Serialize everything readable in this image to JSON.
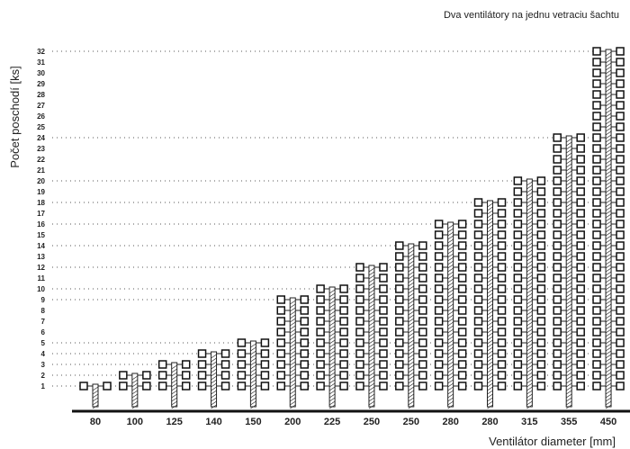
{
  "chart_data": {
    "type": "bar",
    "title": "Dva ventilátory na jednu vetraciu šachtu",
    "xlabel": "Ventilátor diameter [mm]",
    "ylabel": "Počet poschodí [ks]",
    "categories": [
      "80",
      "100",
      "125",
      "140",
      "150",
      "200",
      "225",
      "250",
      "250",
      "280",
      "280",
      "315",
      "355",
      "450"
    ],
    "values": [
      1,
      2,
      3,
      4,
      5,
      9,
      10,
      12,
      14,
      16,
      18,
      20,
      24,
      32
    ],
    "y_ticks": [
      1,
      2,
      3,
      4,
      5,
      6,
      7,
      8,
      9,
      10,
      11,
      12,
      13,
      14,
      15,
      16,
      17,
      18,
      19,
      20,
      21,
      22,
      23,
      24,
      25,
      26,
      27,
      28,
      29,
      30,
      31,
      32
    ],
    "gridlines_at": [
      1,
      2,
      3,
      4,
      5,
      9,
      10,
      12,
      14,
      16,
      18,
      20,
      24,
      32
    ],
    "ylim": [
      0,
      32
    ],
    "grid": "dotted horizontal",
    "legend": "none",
    "colors": {
      "ink": "#111111",
      "background": "#ffffff"
    }
  }
}
